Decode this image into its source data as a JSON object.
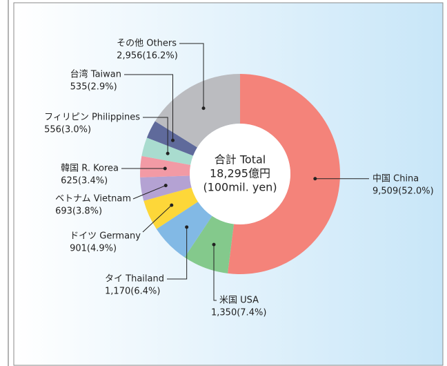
{
  "chart_data": {
    "type": "donut",
    "center_label": [
      "合計 Total",
      "18,295億円",
      "(100mil. yen)"
    ],
    "categories": [
      "中国 China",
      "米国 USA",
      "タイ Thailand",
      "ドイツ Germany",
      "ベトナム Vietnam",
      "韓国 R. Korea",
      "フィリピン Philippines",
      "台湾 Taiwan",
      "その他 Others"
    ],
    "values": [
      9509,
      1350,
      1170,
      901,
      693,
      625,
      556,
      535,
      2956
    ],
    "value_labels": [
      "9,509(52.0%)",
      "1,350(7.4%)",
      "1,170(6.4%)",
      "901(4.9%)",
      "693(3.8%)",
      "625(3.4%)",
      "556(3.0%)",
      "535(2.9%)",
      "2,956(16.2%)"
    ],
    "colors": [
      "#f4837a",
      "#84c98c",
      "#82b9e5",
      "#fdd739",
      "#b4a2d3",
      "#f29aa5",
      "#a9dccf",
      "#5f6a9b",
      "#bbbcc0"
    ]
  }
}
